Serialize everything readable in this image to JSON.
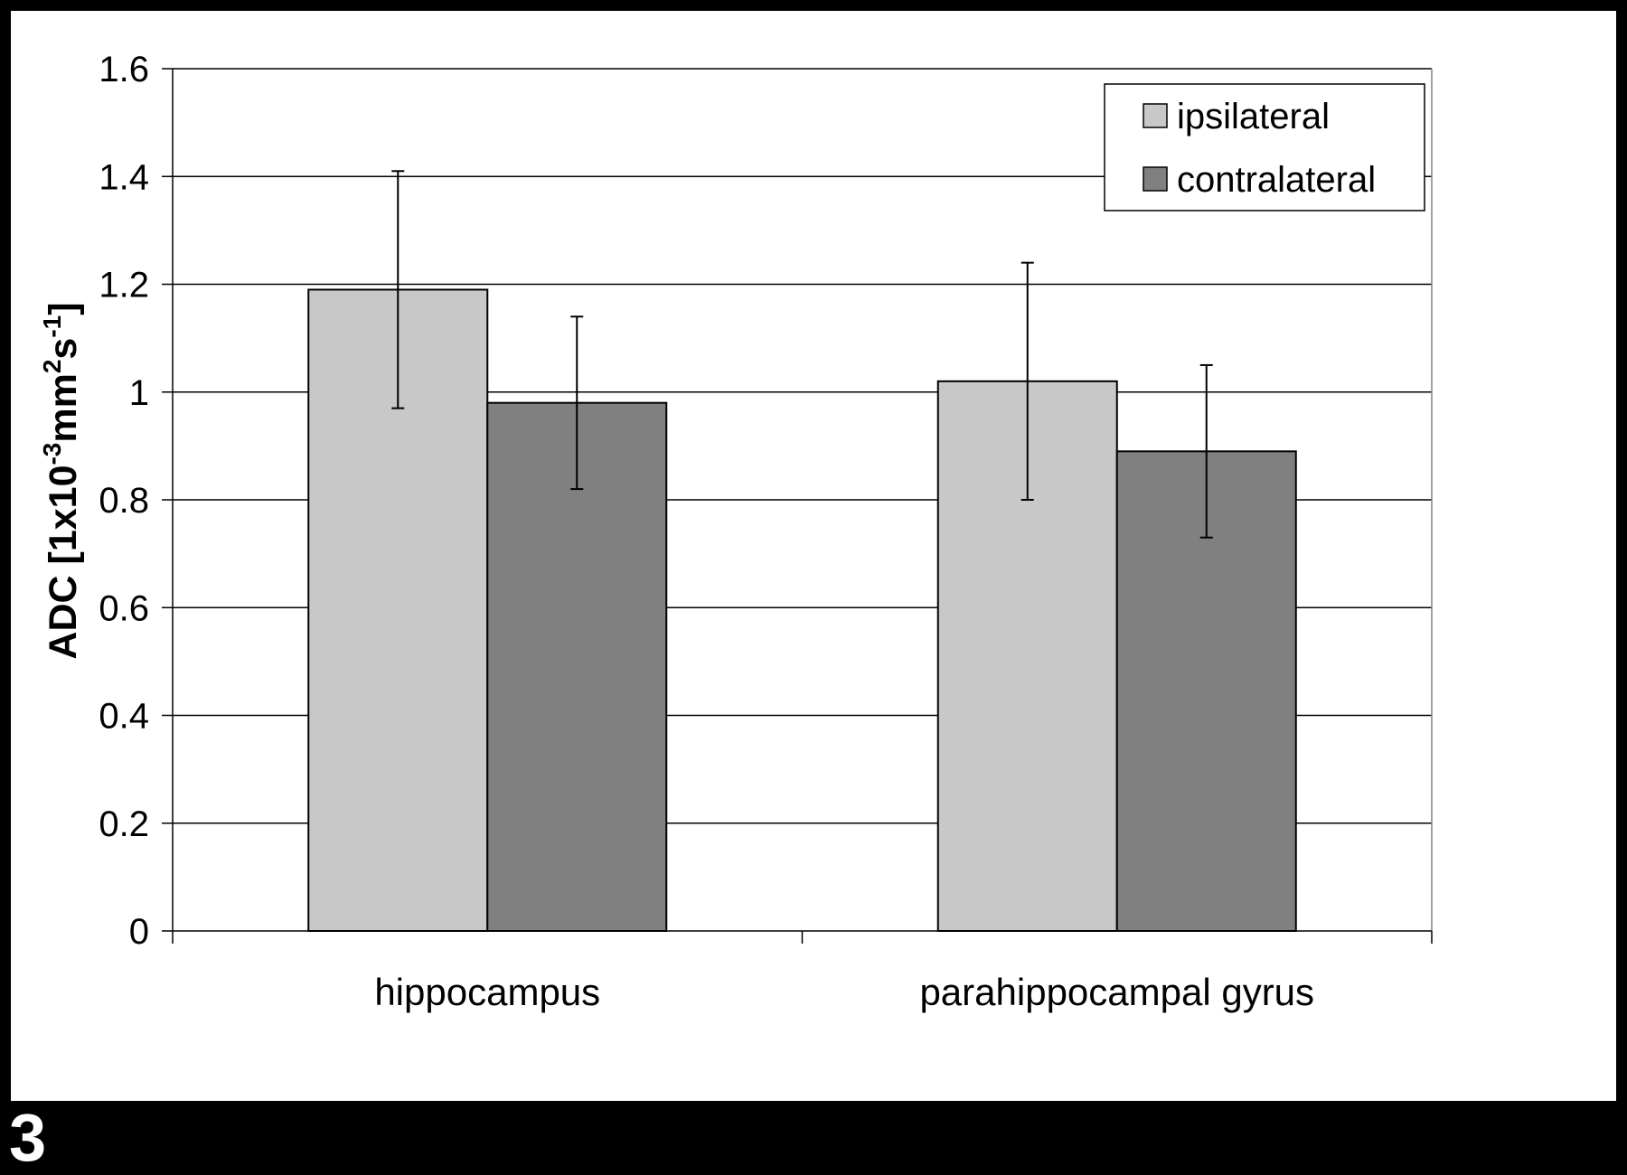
{
  "figure_label": "3",
  "chart_data": {
    "type": "bar",
    "categories": [
      "hippocampus",
      "parahippocampal gyrus"
    ],
    "series": [
      {
        "name": "ipsilateral",
        "values": [
          1.19,
          1.02
        ],
        "error": [
          0.22,
          0.22
        ],
        "color": "#c8c8c8"
      },
      {
        "name": "contralateral",
        "values": [
          0.98,
          0.89
        ],
        "error": [
          0.16,
          0.16
        ],
        "color": "#808080"
      }
    ],
    "ylabel": {
      "main": "ADC [1x10",
      "exp1": "-3",
      "mid": "mm",
      "exp2": "2",
      "mid2": "s",
      "exp3": "-1",
      "end": "]"
    },
    "ylim": [
      0,
      1.6
    ],
    "yticks": [
      "0",
      "0.2",
      "0.4",
      "0.6",
      "0.8",
      "1",
      "1.2",
      "1.4",
      "1.6"
    ],
    "grid": true,
    "legend_position": "top-right"
  }
}
